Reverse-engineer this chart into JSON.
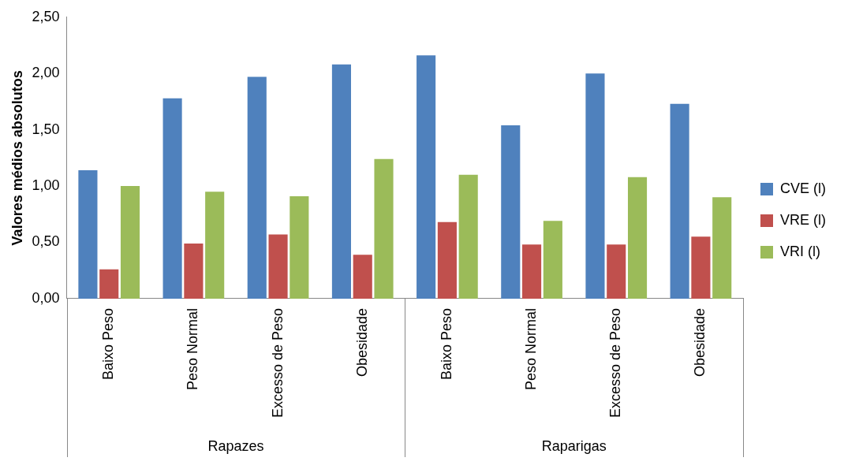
{
  "chart_data": {
    "type": "bar",
    "ylabel": "Valores médios absolutos",
    "categories": [
      "Baixo Peso",
      "Peso Normal",
      "Excesso de Peso",
      "Obesidade",
      "Baixo Peso",
      "Peso Normal",
      "Excesso de Peso",
      "Obesidade"
    ],
    "series": [
      {
        "name": "CVE (l)",
        "color": "#4f81bd",
        "values": [
          1.14,
          1.78,
          1.97,
          2.08,
          2.16,
          1.54,
          2.0,
          1.73
        ]
      },
      {
        "name": "VRE (l)",
        "color": "#c0504d",
        "values": [
          0.26,
          0.49,
          0.57,
          0.39,
          0.68,
          0.48,
          0.48,
          0.55
        ]
      },
      {
        "name": "VRI (l)",
        "color": "#9bbb59",
        "values": [
          1.0,
          0.95,
          0.91,
          1.24,
          1.1,
          0.69,
          1.08,
          0.9
        ]
      }
    ],
    "ylim": [
      0,
      2.5
    ],
    "yticks": [
      {
        "value": 0,
        "label": "0,00"
      },
      {
        "value": 0.5,
        "label": "0,50"
      },
      {
        "value": 1,
        "label": "1,00"
      },
      {
        "value": 1.5,
        "label": "1,50"
      },
      {
        "value": 2,
        "label": "2,00"
      },
      {
        "value": 2.5,
        "label": "2,50"
      }
    ],
    "annotations": [
      "Rapazes",
      "Raparigas"
    ],
    "grid": false,
    "legend": "right"
  }
}
